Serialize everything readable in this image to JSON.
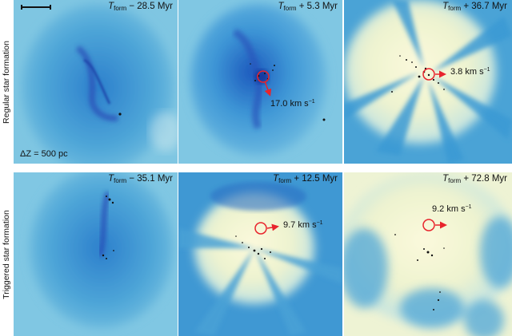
{
  "rows": [
    {
      "label": "Regular star formation"
    },
    {
      "label": "Triggered star formation"
    }
  ],
  "panels": [
    {
      "t_symbol": "T",
      "t_sub": "form",
      "t_offset": "− 28.5 Myr"
    },
    {
      "t_symbol": "T",
      "t_sub": "form",
      "t_offset": "+ 5.3 Myr",
      "velocity": "17.0 km s",
      "unit_exp": "−1"
    },
    {
      "t_symbol": "T",
      "t_sub": "form",
      "t_offset": "+ 36.7 Myr",
      "velocity": "3.8 km s",
      "unit_exp": "−1"
    },
    {
      "t_symbol": "T",
      "t_sub": "form",
      "t_offset": "− 35.1 Myr"
    },
    {
      "t_symbol": "T",
      "t_sub": "form",
      "t_offset": "+ 12.5 Myr",
      "velocity": "9.7 km s",
      "unit_exp": "−1"
    },
    {
      "t_symbol": "T",
      "t_sub": "form",
      "t_offset": "+ 72.8 Myr",
      "velocity": "9.2 km s",
      "unit_exp": "−1"
    }
  ],
  "scale_label": "ΔZ = 500 pc",
  "colors": {
    "gas_dense": "#1f4fb0",
    "gas_mid": "#2f8fd0",
    "gas_diffuse": "#7cc6e3",
    "gas_hot": "#f4f6d8",
    "marker": "#e8242c",
    "stars": "#111111"
  }
}
